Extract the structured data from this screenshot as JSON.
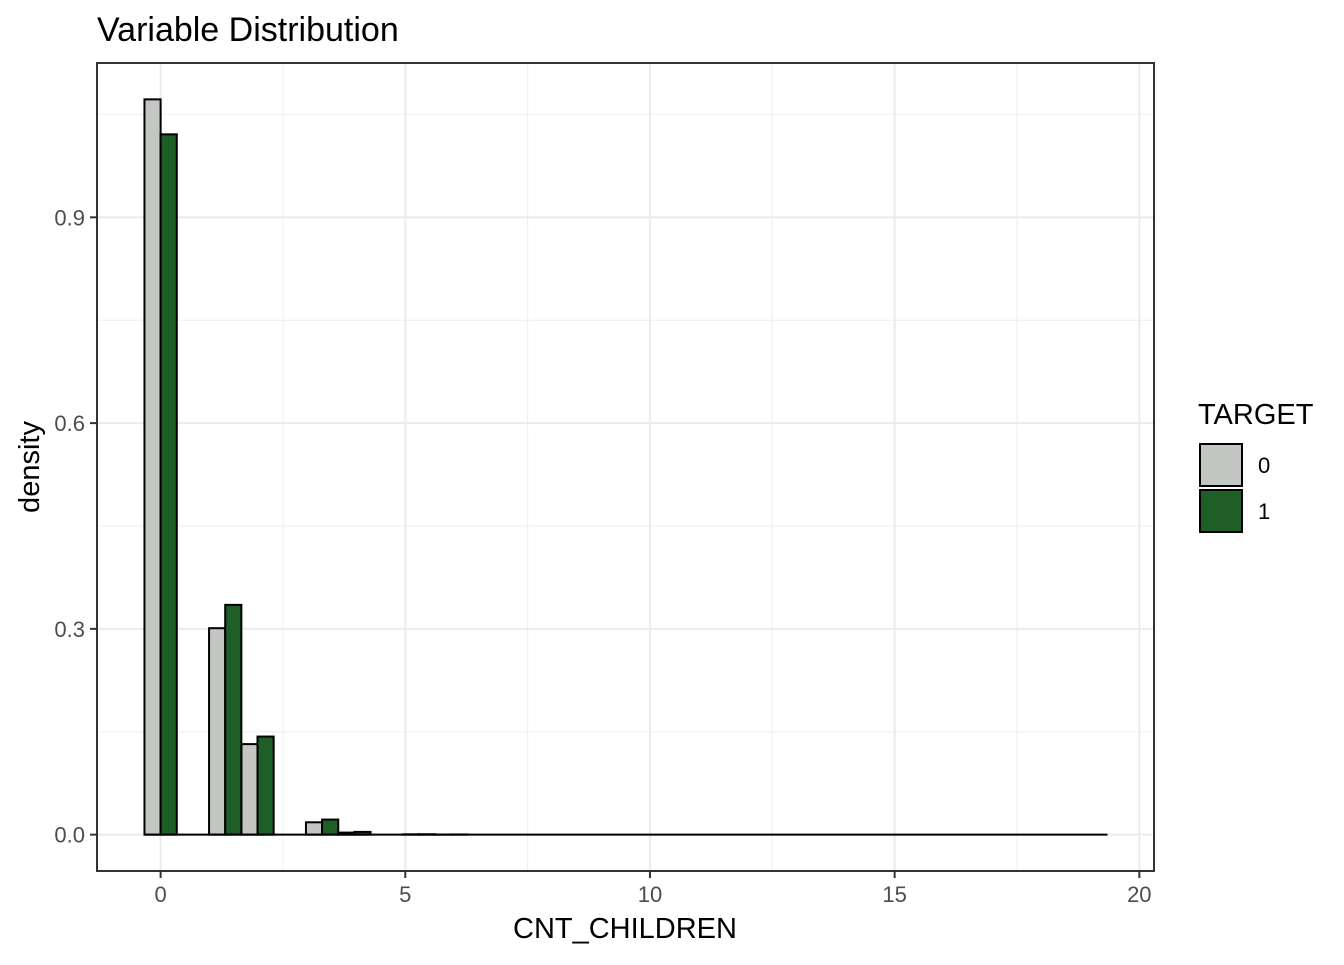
{
  "chart_data": {
    "type": "bar",
    "title": "Variable Distribution",
    "xlabel": "CNT_CHILDREN",
    "ylabel": "density",
    "xlim": [
      -1.3,
      20.3
    ],
    "ylim": [
      -0.053,
      1.125
    ],
    "x_ticks": [
      0,
      5,
      10,
      15,
      20
    ],
    "y_ticks": [
      0.0,
      0.3,
      0.6,
      0.9
    ],
    "y_tick_labels": [
      "0.0",
      "0.3",
      "0.6",
      "0.9"
    ],
    "x_tick_labels": [
      "0",
      "5",
      "10",
      "15",
      "20"
    ],
    "grid": true,
    "legend": {
      "title": "TARGET",
      "position": "right",
      "entries": [
        {
          "label": "0",
          "color": "#c4c6c3"
        },
        {
          "label": "1",
          "color": "#1f5e27"
        }
      ]
    },
    "series": [
      {
        "target": "0",
        "color": "#c4c6c3",
        "bins": [
          {
            "x0": -0.33,
            "x1": 0.0,
            "y": 1.072
          },
          {
            "x0": 0.99,
            "x1": 1.32,
            "y": 0.301
          },
          {
            "x0": 1.65,
            "x1": 1.98,
            "y": 0.132
          },
          {
            "x0": 2.97,
            "x1": 3.3,
            "y": 0.018
          },
          {
            "x0": 3.63,
            "x1": 3.96,
            "y": 0.003
          },
          {
            "x0": 4.95,
            "x1": 5.28,
            "y": 0.0005
          },
          {
            "x0": 5.61,
            "x1": 5.94,
            "y": 0.0002
          }
        ]
      },
      {
        "target": "1",
        "color": "#1f5e27",
        "bins": [
          {
            "x0": 0.0,
            "x1": 0.33,
            "y": 1.021
          },
          {
            "x0": 1.32,
            "x1": 1.65,
            "y": 0.335
          },
          {
            "x0": 1.98,
            "x1": 2.31,
            "y": 0.143
          },
          {
            "x0": 3.3,
            "x1": 3.63,
            "y": 0.022
          },
          {
            "x0": 3.96,
            "x1": 4.29,
            "y": 0.004
          },
          {
            "x0": 5.28,
            "x1": 5.61,
            "y": 0.0006
          },
          {
            "x0": 5.94,
            "x1": 6.27,
            "y": 0.0003
          }
        ]
      }
    ],
    "baseline_extent": [
      -0.33,
      19.35
    ]
  }
}
